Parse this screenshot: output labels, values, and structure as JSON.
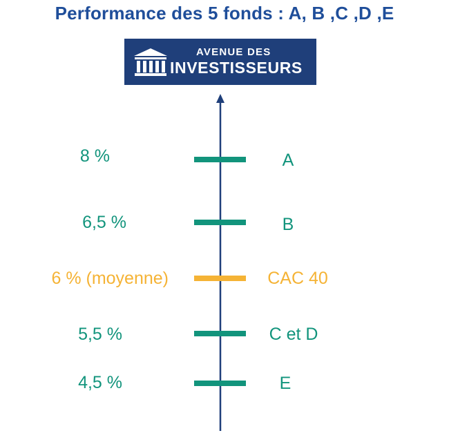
{
  "title": "Performance des 5 fonds : A, B ,C ,D ,E",
  "logo": {
    "line1": "AVENUE DES",
    "line2": "INVESTISSEURS",
    "icon": "bank-building-icon",
    "background": "#1f3f7a"
  },
  "colors": {
    "title": "#1f4e9a",
    "axis": "#1f3f7a",
    "fund": "#12947c",
    "average": "#f5b335"
  },
  "levels": [
    {
      "value_label": "8 %",
      "name": "A",
      "kind": "fund"
    },
    {
      "value_label": "6,5 %",
      "name": "B",
      "kind": "fund"
    },
    {
      "value_label": "6 % (moyenne)",
      "name": "CAC 40",
      "kind": "average"
    },
    {
      "value_label": "5,5 %",
      "name": "C et D",
      "kind": "fund"
    },
    {
      "value_label": "4,5 %",
      "name": "E",
      "kind": "fund"
    }
  ]
}
